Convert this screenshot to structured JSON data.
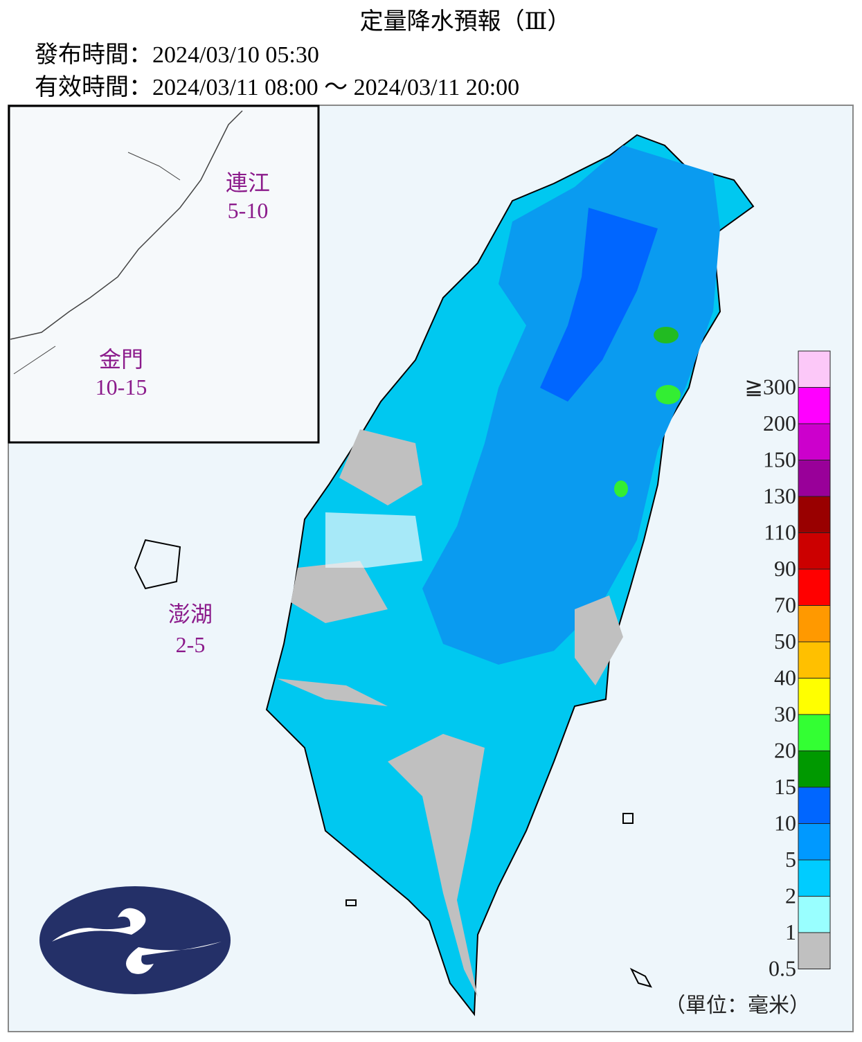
{
  "header": {
    "title": "定量降水預報（Ⅲ）",
    "issued": "發布時間：2024/03/10 05:30",
    "valid": "有效時間：2024/03/11 08:00 ～ 2024/03/11 20:00"
  },
  "islands": [
    {
      "name": "連江",
      "range": "5-10"
    },
    {
      "name": "金門",
      "range": "10-15"
    },
    {
      "name": "澎湖",
      "range": "2-5"
    }
  ],
  "legend": {
    "items": [
      {
        "label": "≧300",
        "color": "#fcc8f8"
      },
      {
        "label": "200",
        "color": "#ff00ff"
      },
      {
        "label": "150",
        "color": "#cc00cc"
      },
      {
        "label": "130",
        "color": "#990099"
      },
      {
        "label": "110",
        "color": "#990000"
      },
      {
        "label": "90",
        "color": "#cc0000"
      },
      {
        "label": "70",
        "color": "#ff0000"
      },
      {
        "label": "50",
        "color": "#ff9900"
      },
      {
        "label": "40",
        "color": "#ffc000"
      },
      {
        "label": "30",
        "color": "#ffff00"
      },
      {
        "label": "20",
        "color": "#33ff33"
      },
      {
        "label": "15",
        "color": "#009900"
      },
      {
        "label": "10",
        "color": "#0066ff"
      },
      {
        "label": "5",
        "color": "#0099ff"
      },
      {
        "label": "2",
        "color": "#00ccff"
      },
      {
        "label": "1",
        "color": "#99ffff"
      },
      {
        "label": "0.5",
        "color": "#c0c0c0"
      }
    ],
    "unit": "（單位：毫米）"
  }
}
